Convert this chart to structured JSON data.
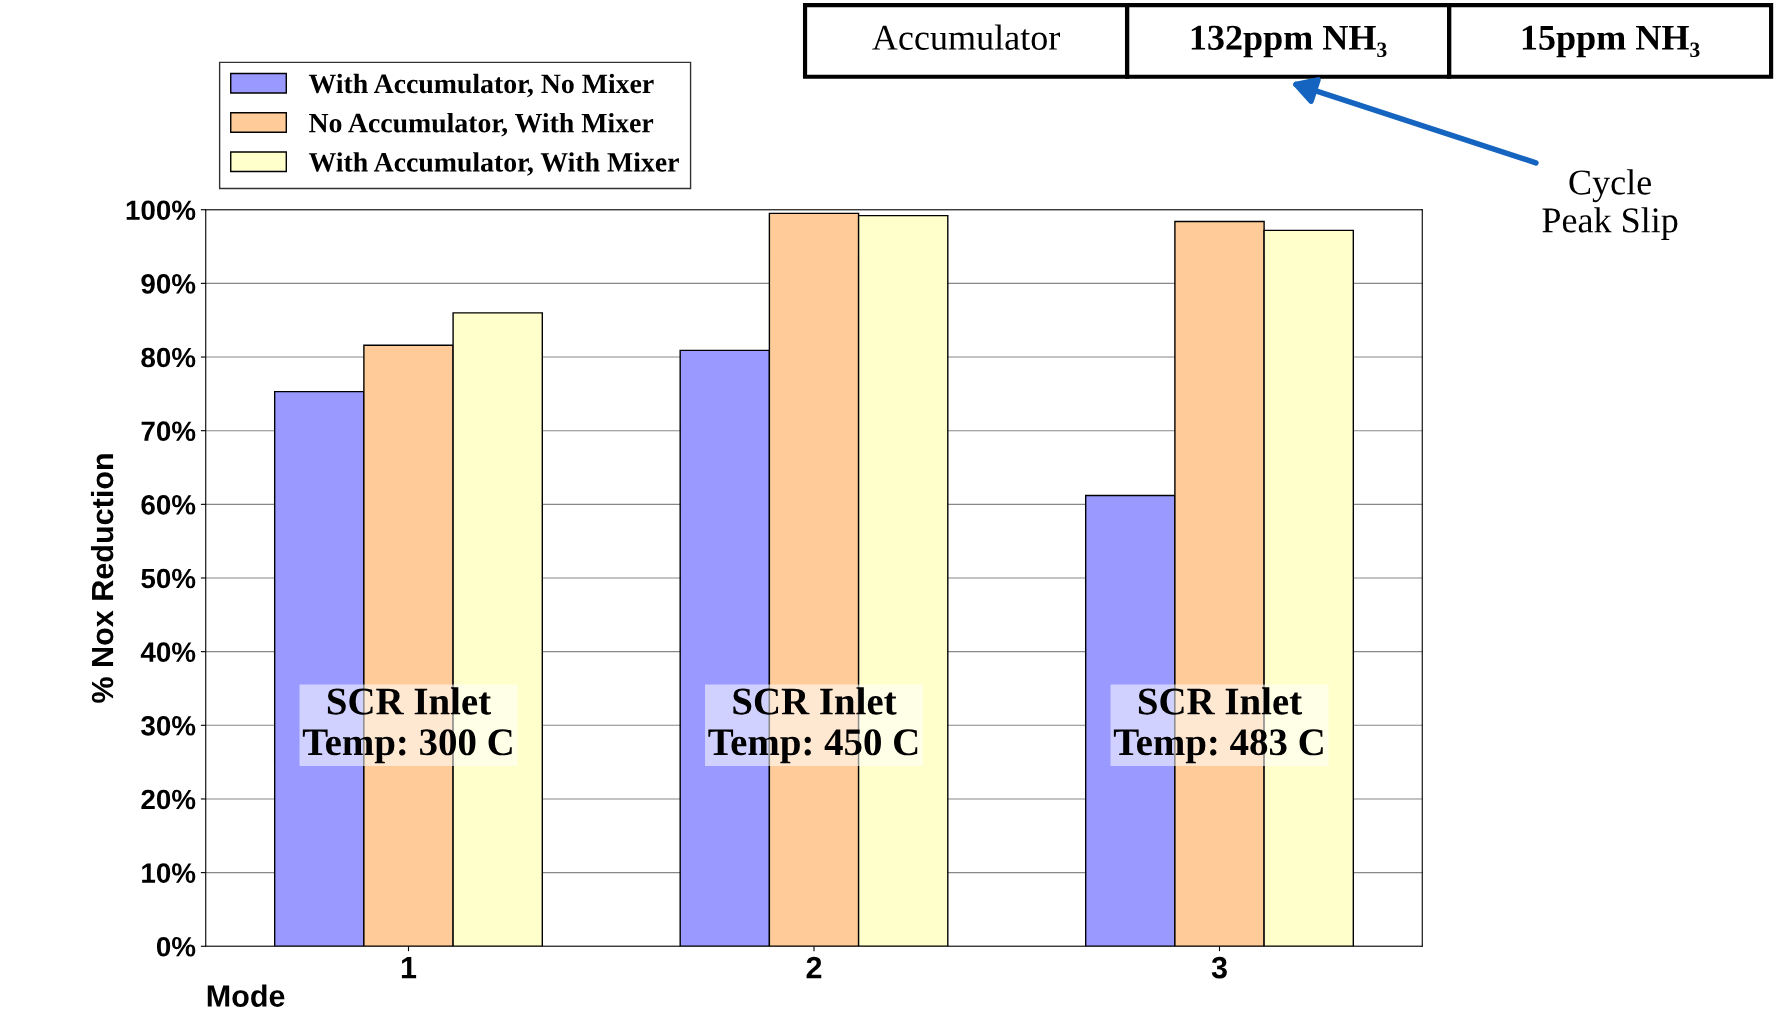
{
  "chart_data": {
    "type": "bar",
    "ylabel": "% Nox Reduction",
    "xlabel": "Mode",
    "categories": [
      "1",
      "2",
      "3"
    ],
    "series": [
      {
        "name": "With Accumulator, No Mixer",
        "color": "#9999ff",
        "values": [
          75.3,
          80.9,
          61.2
        ]
      },
      {
        "name": "No Accumulator, With Mixer",
        "color": "#ffcc99",
        "values": [
          81.6,
          99.5,
          98.4
        ]
      },
      {
        "name": "With Accumulator, With Mixer",
        "color": "#ffffcc",
        "values": [
          86.0,
          99.2,
          97.2
        ]
      }
    ],
    "ylim": [
      0,
      100
    ],
    "yticks": [
      {
        "value": 0,
        "label": "0%"
      },
      {
        "value": 10,
        "label": "10%"
      },
      {
        "value": 20,
        "label": "20%"
      },
      {
        "value": 30,
        "label": "30%"
      },
      {
        "value": 40,
        "label": "40%"
      },
      {
        "value": 50,
        "label": "50%"
      },
      {
        "value": 60,
        "label": "60%"
      },
      {
        "value": 70,
        "label": "70%"
      },
      {
        "value": 80,
        "label": "80%"
      },
      {
        "value": 90,
        "label": "90%"
      },
      {
        "value": 100,
        "label": "100%"
      }
    ],
    "grid": "y",
    "legend": "top left",
    "annotations": [
      "SCR Inlet\nTemp: 300 C",
      "SCR Inlet\nTemp: 450 C",
      "SCR Inlet\nTemp: 483 C",
      "Accumulator",
      "132ppm NH₃",
      "15ppm NH₃",
      "Cycle\nPeak Slip"
    ]
  }
}
